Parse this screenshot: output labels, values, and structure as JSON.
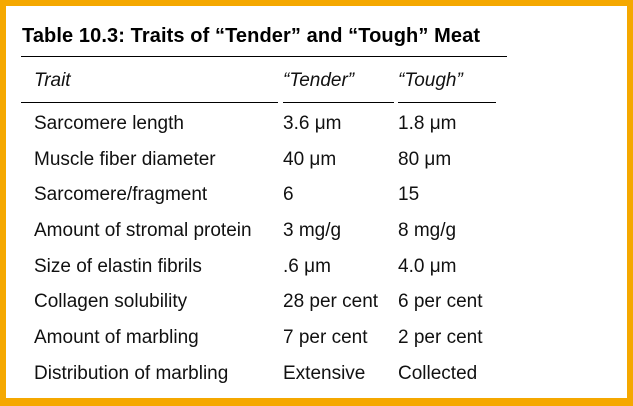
{
  "title": "Table 10.3: Traits of “Tender” and “Tough” Meat",
  "headers": [
    "Trait",
    "“Tender”",
    "“Tough”"
  ],
  "rows": [
    {
      "trait": "Sarcomere length",
      "tender": "3.6 μm",
      "tough": "1.8 μm"
    },
    {
      "trait": "Muscle fiber diameter",
      "tender": "40 μm",
      "tough": "80 μm"
    },
    {
      "trait": "Sarcomere/fragment",
      "tender": "6",
      "tough": "15"
    },
    {
      "trait": "Amount of stromal protein",
      "tender": "3 mg/g",
      "tough": "8 mg/g"
    },
    {
      "trait": "Size of elastin fibrils",
      "tender": ".6 μm",
      "tough": "4.0 μm"
    },
    {
      "trait": "Collagen solubility",
      "tender": "28 per cent",
      "tough": "6 per cent"
    },
    {
      "trait": "Amount of marbling",
      "tender": "7 per cent",
      "tough": "2 per cent"
    },
    {
      "trait": "Distribution of marbling",
      "tender": "Extensive",
      "tough": "Collected"
    }
  ],
  "colors": {
    "border": "#f5a800",
    "text": "#111111"
  }
}
